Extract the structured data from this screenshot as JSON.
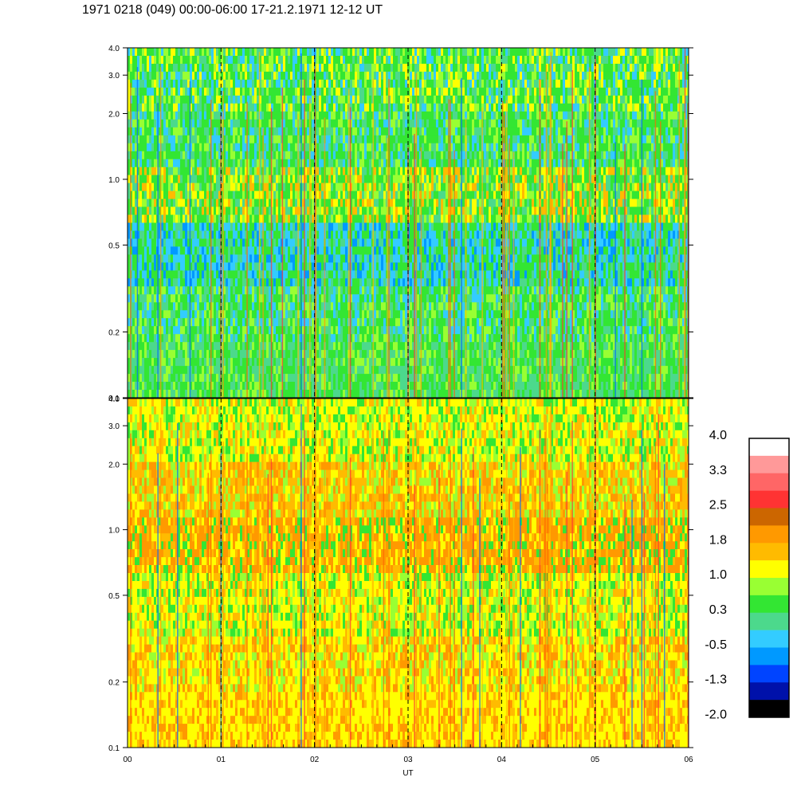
{
  "title": "1971 0218 (049) 00:00-06:00 17-21.2.1971 12-12 UT",
  "chart_data": {
    "type": "heatmap",
    "xlabel": "UT",
    "x_ticks": [
      "00",
      "01",
      "02",
      "03",
      "04",
      "05",
      "06"
    ],
    "x_range": [
      0,
      6
    ],
    "y_scale": "log",
    "y_range": [
      0.1,
      4.0
    ],
    "y_ticks": [
      "0.1",
      "0.2",
      "0.5",
      "1.0",
      "2.0",
      "3.0",
      "4.0"
    ],
    "panels": [
      {
        "dominant_colors": [
          "#33e633",
          "#99ff33",
          "#ffff00",
          "#33ccff",
          "#0099ff"
        ]
      },
      {
        "dominant_colors": [
          "#ffff00",
          "#ffbb00",
          "#ff9900",
          "#99ff33",
          "#33e633"
        ]
      }
    ],
    "colorbar": {
      "labels": [
        "4.0",
        "3.3",
        "2.5",
        "1.8",
        "1.0",
        "0.3",
        "-0.5",
        "-1.3",
        "-2.0"
      ],
      "colors": [
        "#ffffff",
        "#ff9999",
        "#ff6666",
        "#ff3333",
        "#cc6600",
        "#ff9900",
        "#ffbb00",
        "#ffff00",
        "#99ff33",
        "#33e633",
        "#4cd98c",
        "#33ccff",
        "#0099ff",
        "#0044ff",
        "#0011aa",
        "#000000"
      ]
    },
    "grid": "dashed vertical lines at each hour"
  }
}
